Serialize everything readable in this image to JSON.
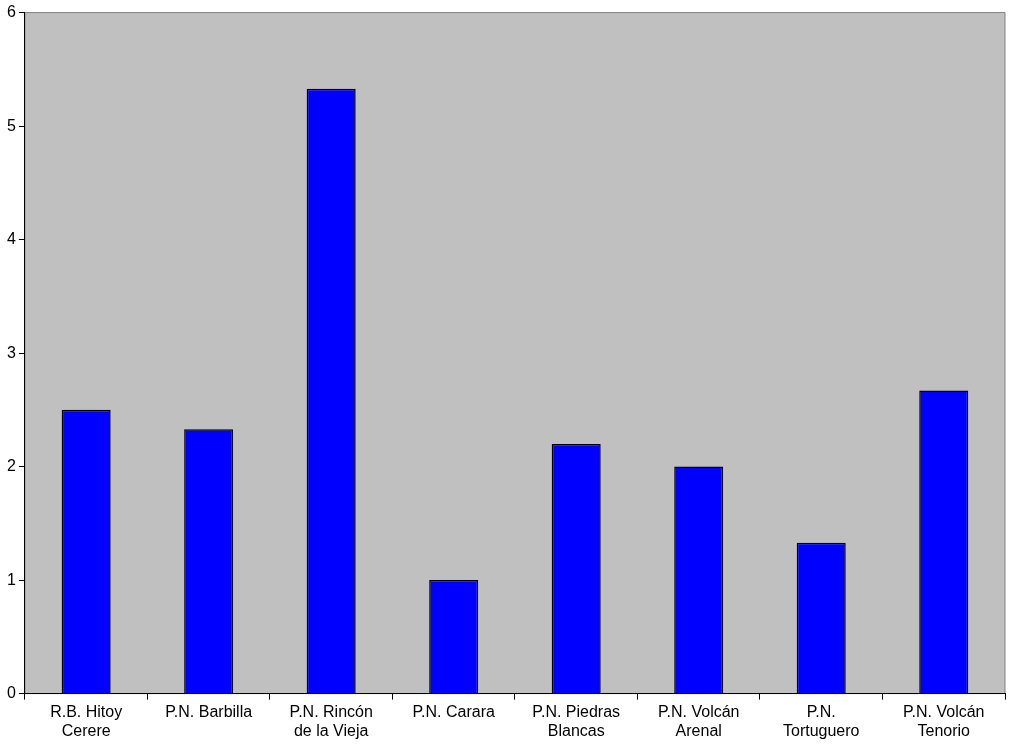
{
  "chart_data": {
    "type": "bar",
    "categories": [
      "R.B. Hitoy Cerere",
      "P.N. Barbilla",
      "P.N. Rincón de la Vieja",
      "P.N. Carara",
      "P.N. Piedras Blancas",
      "P.N. Volcán Arenal",
      "P.N. Tortuguero",
      "P.N. Volcán Tenorio"
    ],
    "values": [
      2.5,
      2.33,
      5.33,
      1,
      2.2,
      2,
      1.33,
      2.67
    ],
    "color": "#0000ff",
    "ylim": [
      0,
      6
    ],
    "yticks": [
      0,
      1,
      2,
      3,
      4,
      5,
      6
    ],
    "grid": false,
    "legend": false
  }
}
